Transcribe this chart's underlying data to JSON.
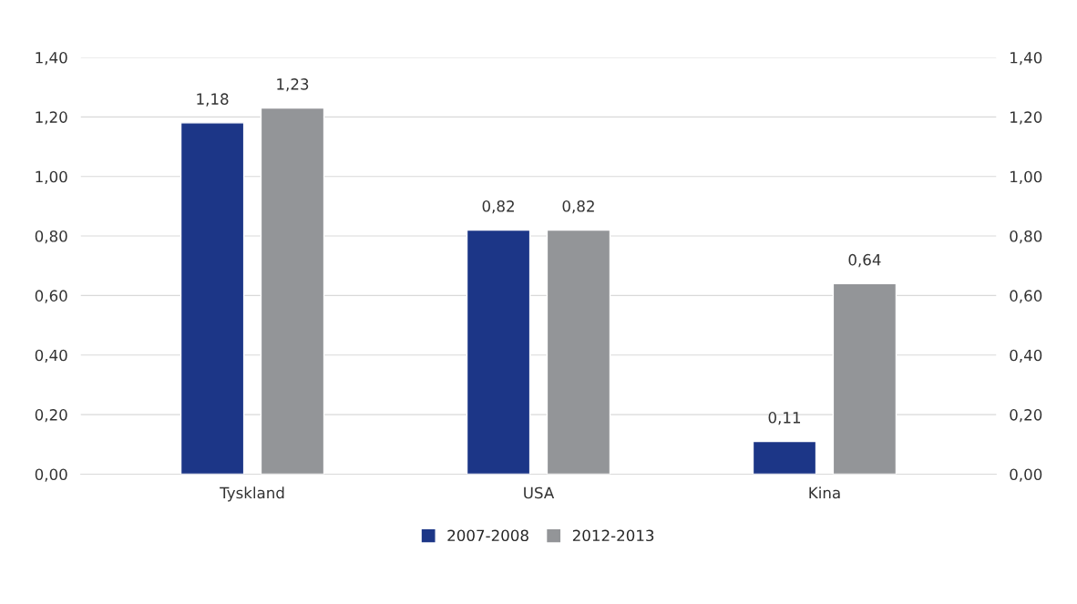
{
  "chart_data": {
    "type": "bar",
    "categories": [
      "Tyskland",
      "USA",
      "Kina"
    ],
    "series": [
      {
        "name": "2007-2008",
        "color": "#1c3687",
        "values": [
          1.18,
          0.82,
          0.11
        ],
        "value_labels": [
          "1,18",
          "0,82",
          "0,11"
        ]
      },
      {
        "name": "2012-2013",
        "color": "#939598",
        "values": [
          1.23,
          0.82,
          0.64
        ],
        "value_labels": [
          "1,23",
          "0,82",
          "0,64"
        ]
      }
    ],
    "ylim": [
      0,
      1.4
    ],
    "yticks": [
      {
        "value": 0,
        "label": "0,00"
      },
      {
        "value": 0.2,
        "label": "0,20"
      },
      {
        "value": 0.4,
        "label": "0,40"
      },
      {
        "value": 0.6,
        "label": "0,60"
      },
      {
        "value": 0.8,
        "label": "0,80"
      },
      {
        "value": 1.0,
        "label": "1,00"
      },
      {
        "value": 1.2,
        "label": "1,20"
      },
      {
        "value": 1.4,
        "label": "1,40"
      }
    ],
    "y2lim": [
      0,
      1.4
    ],
    "y2ticks": [
      {
        "value": 0,
        "label": "0,00"
      },
      {
        "value": 0.2,
        "label": "0,20"
      },
      {
        "value": 0.4,
        "label": "0,40"
      },
      {
        "value": 0.6,
        "label": "0,60"
      },
      {
        "value": 0.8,
        "label": "0,80"
      },
      {
        "value": 1.0,
        "label": "1,00"
      },
      {
        "value": 1.2,
        "label": "1,20"
      },
      {
        "value": 1.4,
        "label": "1,40"
      }
    ],
    "grid": "y",
    "legend": "bottom"
  }
}
